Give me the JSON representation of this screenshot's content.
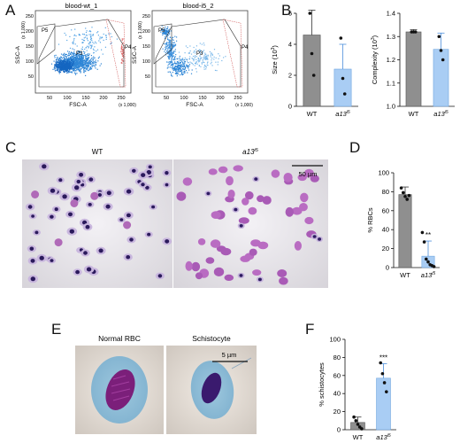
{
  "panels": {
    "A": "A",
    "B": "B",
    "C": "C",
    "D": "D",
    "E": "E",
    "F": "F"
  },
  "flow": [
    {
      "title": "blood-wt_1",
      "ylabel": "SSC-A",
      "xlabel": "FSC-A",
      "yunit": "(x 1,000)",
      "xunit": "(x 1,000)",
      "gates": [
        "P5",
        "P3",
        "P4"
      ],
      "yticks": [
        "250",
        "200",
        "150",
        "100",
        "50"
      ],
      "xticks": [
        "50",
        "100",
        "150",
        "200",
        "250"
      ]
    },
    {
      "title": "blood-i5_2",
      "ylabel": "SSC-A",
      "xlabel": "FSC-A",
      "yunit": "(x 1,000)",
      "xunit": "(x 1,000)",
      "gates": [
        "P5",
        "P3",
        "P4"
      ],
      "yticks": [
        "250",
        "200",
        "150",
        "100",
        "50"
      ],
      "xticks": [
        "50",
        "100",
        "150",
        "200",
        "250"
      ]
    }
  ],
  "micro": {
    "c_left_label": "WT",
    "c_right_label": "a13",
    "c_right_sup": "i5",
    "c_scale": "50 µm",
    "e_left_label": "Normal RBC",
    "e_right_label": "Schistocyte",
    "e_scale": "5 µm"
  },
  "chart_data": [
    {
      "id": "B-size",
      "type": "bar",
      "categories": [
        "WT",
        "a13i5"
      ],
      "values": [
        4.6,
        2.4
      ],
      "errors": [
        1.6,
        1.6
      ],
      "points": [
        [
          6.0,
          3.4,
          2.0
        ],
        [
          4.4,
          1.8,
          0.8
        ]
      ],
      "ylabel": "Size (10",
      "ylabel_sup": "3",
      "ylabel_end": ")",
      "ylim": [
        0,
        6
      ],
      "yticks": [
        "0",
        "2",
        "4",
        "6"
      ],
      "colors": [
        "#8f8f8f",
        "#a9cdf4"
      ]
    },
    {
      "id": "B-complexity",
      "type": "bar",
      "categories": [
        "WT",
        "a13i5"
      ],
      "values": [
        1.32,
        1.245
      ],
      "errors": [
        0.01,
        0.07
      ],
      "points": [
        [
          1.32,
          1.32,
          1.32
        ],
        [
          1.3,
          1.24,
          1.2
        ]
      ],
      "ylabel": "Complexity (10",
      "ylabel_sup": "3",
      "ylabel_end": ")",
      "ylim": [
        1.0,
        1.4
      ],
      "yticks": [
        "1.0",
        "1.1",
        "1.2",
        "1.3",
        "1.4"
      ],
      "colors": [
        "#8f8f8f",
        "#a9cdf4"
      ]
    },
    {
      "id": "D",
      "type": "bar",
      "categories": [
        "WT",
        "a13i5"
      ],
      "values": [
        77,
        12
      ],
      "errors": [
        8,
        16
      ],
      "points": [
        [
          84,
          79,
          75,
          72,
          76
        ],
        [
          37,
          27,
          9,
          6,
          3,
          2,
          1
        ]
      ],
      "ylabel": "% RBCs",
      "ylim": [
        0,
        100
      ],
      "yticks": [
        "0",
        "20",
        "40",
        "60",
        "80",
        "100"
      ],
      "significance": "**",
      "colors": [
        "#8f8f8f",
        "#a9cdf4"
      ]
    },
    {
      "id": "F",
      "type": "bar",
      "categories": [
        "WT",
        "a13i5"
      ],
      "values": [
        8,
        57
      ],
      "errors": [
        6,
        16
      ],
      "points": [
        [
          14,
          10,
          6,
          3,
          1
        ],
        [
          74,
          62,
          52,
          42
        ]
      ],
      "ylabel": "% schistocytes",
      "ylim": [
        0,
        100
      ],
      "yticks": [
        "0",
        "20",
        "40",
        "60",
        "80",
        "100"
      ],
      "significance": "***",
      "colors": [
        "#8f8f8f",
        "#a9cdf4"
      ]
    }
  ]
}
